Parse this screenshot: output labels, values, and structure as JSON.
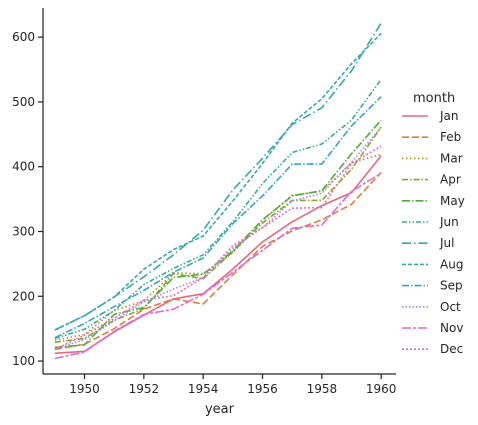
{
  "chart_data": {
    "type": "line",
    "xlabel": "year",
    "ylabel": "",
    "xlim": [
      1948.6,
      1960.5
    ],
    "ylim": [
      80,
      645
    ],
    "x_ticks": [
      1950,
      1952,
      1954,
      1956,
      1958,
      1960
    ],
    "y_ticks": [
      100,
      200,
      300,
      400,
      500,
      600
    ],
    "x": [
      1949,
      1950,
      1951,
      1952,
      1953,
      1954,
      1955,
      1956,
      1957,
      1958,
      1959,
      1960
    ],
    "legend_title": "month",
    "legend_position": "right",
    "grid": false,
    "series": [
      {
        "name": "Jan",
        "color": "#e8697e",
        "dash": "",
        "values": [
          112,
          115,
          145,
          171,
          196,
          204,
          242,
          284,
          315,
          340,
          360,
          417
        ]
      },
      {
        "name": "Feb",
        "color": "#d9813a",
        "dash": "7,3",
        "values": [
          118,
          126,
          150,
          180,
          196,
          188,
          233,
          277,
          301,
          318,
          342,
          391
        ]
      },
      {
        "name": "Mar",
        "color": "#b5922d",
        "dash": "1.5,2.5",
        "values": [
          132,
          141,
          178,
          193,
          236,
          235,
          267,
          317,
          356,
          362,
          406,
          419
        ]
      },
      {
        "name": "Apr",
        "color": "#8da232",
        "dash": "6,2,1.5,2",
        "values": [
          129,
          135,
          163,
          181,
          235,
          227,
          269,
          313,
          348,
          348,
          396,
          461
        ]
      },
      {
        "name": "May",
        "color": "#4fad3d",
        "dash": "8,2,1.5,2",
        "values": [
          121,
          125,
          172,
          183,
          229,
          234,
          270,
          318,
          355,
          363,
          420,
          472
        ]
      },
      {
        "name": "Jun",
        "color": "#36ae8d",
        "dash": "5,2,1.5,2,1.5,2",
        "values": [
          135,
          149,
          178,
          218,
          243,
          264,
          315,
          374,
          422,
          435,
          472,
          535
        ]
      },
      {
        "name": "Jul",
        "color": "#37a99e",
        "dash": "9,3,1.5,3",
        "values": [
          148,
          170,
          199,
          230,
          264,
          302,
          364,
          413,
          465,
          491,
          548,
          622
        ]
      },
      {
        "name": "Aug",
        "color": "#39a6b5",
        "dash": "4,2",
        "values": [
          148,
          170,
          199,
          242,
          272,
          293,
          347,
          405,
          467,
          505,
          559,
          606
        ]
      },
      {
        "name": "Sep",
        "color": "#3aa0d0",
        "dash": "7,2,1.5,2",
        "values": [
          136,
          158,
          184,
          209,
          237,
          259,
          312,
          355,
          404,
          404,
          463,
          508
        ]
      },
      {
        "name": "Oct",
        "color": "#9b8be6",
        "dash": "1.5,2",
        "values": [
          119,
          133,
          162,
          191,
          211,
          229,
          274,
          306,
          347,
          359,
          407,
          461
        ]
      },
      {
        "name": "Nov",
        "color": "#e06ae0",
        "dash": "9,2,3,2",
        "values": [
          104,
          114,
          146,
          172,
          180,
          203,
          237,
          271,
          305,
          310,
          362,
          390
        ]
      },
      {
        "name": "Dec",
        "color": "#ea6cbb",
        "dash": "2,2",
        "values": [
          118,
          140,
          166,
          194,
          201,
          229,
          278,
          306,
          336,
          337,
          405,
          432
        ]
      }
    ]
  }
}
